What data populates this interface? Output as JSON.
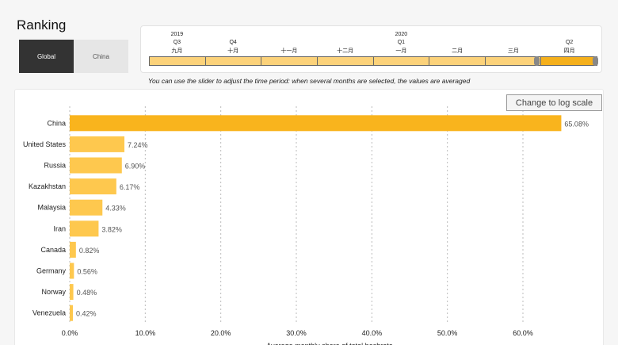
{
  "page": {
    "title": "Ranking"
  },
  "region_tabs": [
    {
      "label": "Global",
      "active": true
    },
    {
      "label": "China",
      "active": false
    }
  ],
  "timeline": {
    "labels": [
      {
        "year": "2019",
        "quarter": "Q3",
        "month": "九月"
      },
      {
        "year": "",
        "quarter": "Q4",
        "month": "十月"
      },
      {
        "year": "",
        "quarter": "",
        "month": "十一月"
      },
      {
        "year": "",
        "quarter": "",
        "month": "十二月"
      },
      {
        "year": "2020",
        "quarter": "Q1",
        "month": "一月"
      },
      {
        "year": "",
        "quarter": "",
        "month": "二月"
      },
      {
        "year": "",
        "quarter": "",
        "month": "三月"
      },
      {
        "year": "",
        "quarter": "Q2",
        "month": "四月"
      }
    ],
    "selected_month": "四月"
  },
  "hint": "You can use the slider to adjust the time period: when several months are selected, the values are averaged",
  "log_button_label": "Change to log scale",
  "colors": {
    "bar_top": "#f9b41d",
    "bar": "#fec84e",
    "selected": "#f5b01c",
    "unselected": "#fcd27a"
  },
  "chart_data": {
    "type": "bar",
    "orientation": "horizontal",
    "categories": [
      "China",
      "United States",
      "Russia",
      "Kazakhstan",
      "Malaysia",
      "Iran",
      "Canada",
      "Germany",
      "Norway",
      "Venezuela"
    ],
    "values": [
      65.08,
      7.24,
      6.9,
      6.17,
      4.33,
      3.82,
      0.82,
      0.56,
      0.48,
      0.42
    ],
    "value_labels": [
      "65.08%",
      "7.24%",
      "6.90%",
      "6.17%",
      "4.33%",
      "3.82%",
      "0.82%",
      "0.56%",
      "0.48%",
      "0.42%"
    ],
    "x_ticks": [
      0,
      10,
      20,
      30,
      40,
      50,
      60
    ],
    "x_tick_labels": [
      "0.0%",
      "10.0%",
      "20.0%",
      "30.0%",
      "40.0%",
      "50.0%",
      "60.0%"
    ],
    "xlim": [
      0,
      70
    ],
    "xlabel": "Average monthly share of total hashrate",
    "grid": true
  }
}
